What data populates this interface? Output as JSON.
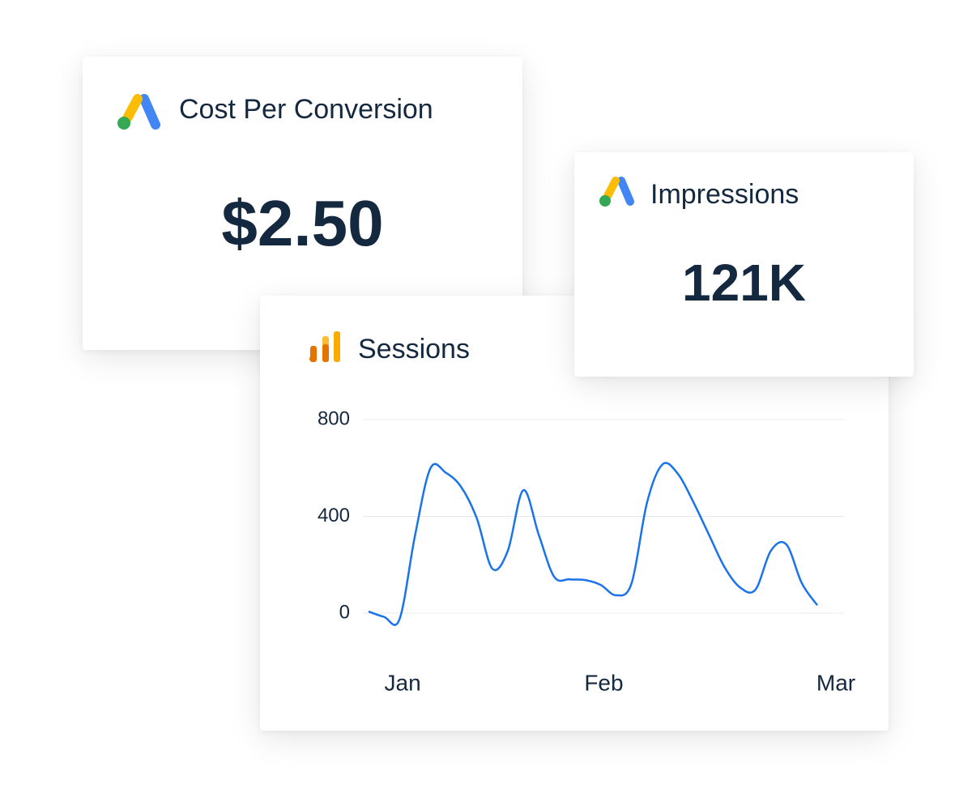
{
  "cards": [
    {
      "title": "Cost Per Conversion",
      "value": "$2.50"
    },
    {
      "title": "Impressions",
      "value": "121K"
    }
  ],
  "chart_data": {
    "type": "line",
    "title": "Sessions",
    "categories": [
      null,
      "Jan",
      null,
      null,
      null,
      null,
      null,
      null,
      null,
      null,
      null,
      null,
      null,
      null,
      "Feb",
      null,
      null,
      null,
      null,
      null,
      null,
      null,
      null,
      null,
      null,
      null,
      null,
      null,
      null,
      "Mar"
    ],
    "series": [
      {
        "name": "Sessions",
        "color": "#1a73e8",
        "values": [
          7,
          -15,
          -25,
          320,
          599,
          580,
          520,
          391,
          184,
          258,
          508,
          324,
          150,
          140,
          137,
          117,
          74,
          124,
          458,
          615,
          575,
          458,
          324,
          191,
          107,
          97,
          258,
          284,
          124,
          33
        ]
      }
    ],
    "ylim": [
      -40,
      840
    ],
    "yticks": [
      0,
      400,
      800
    ],
    "grid": true
  }
}
